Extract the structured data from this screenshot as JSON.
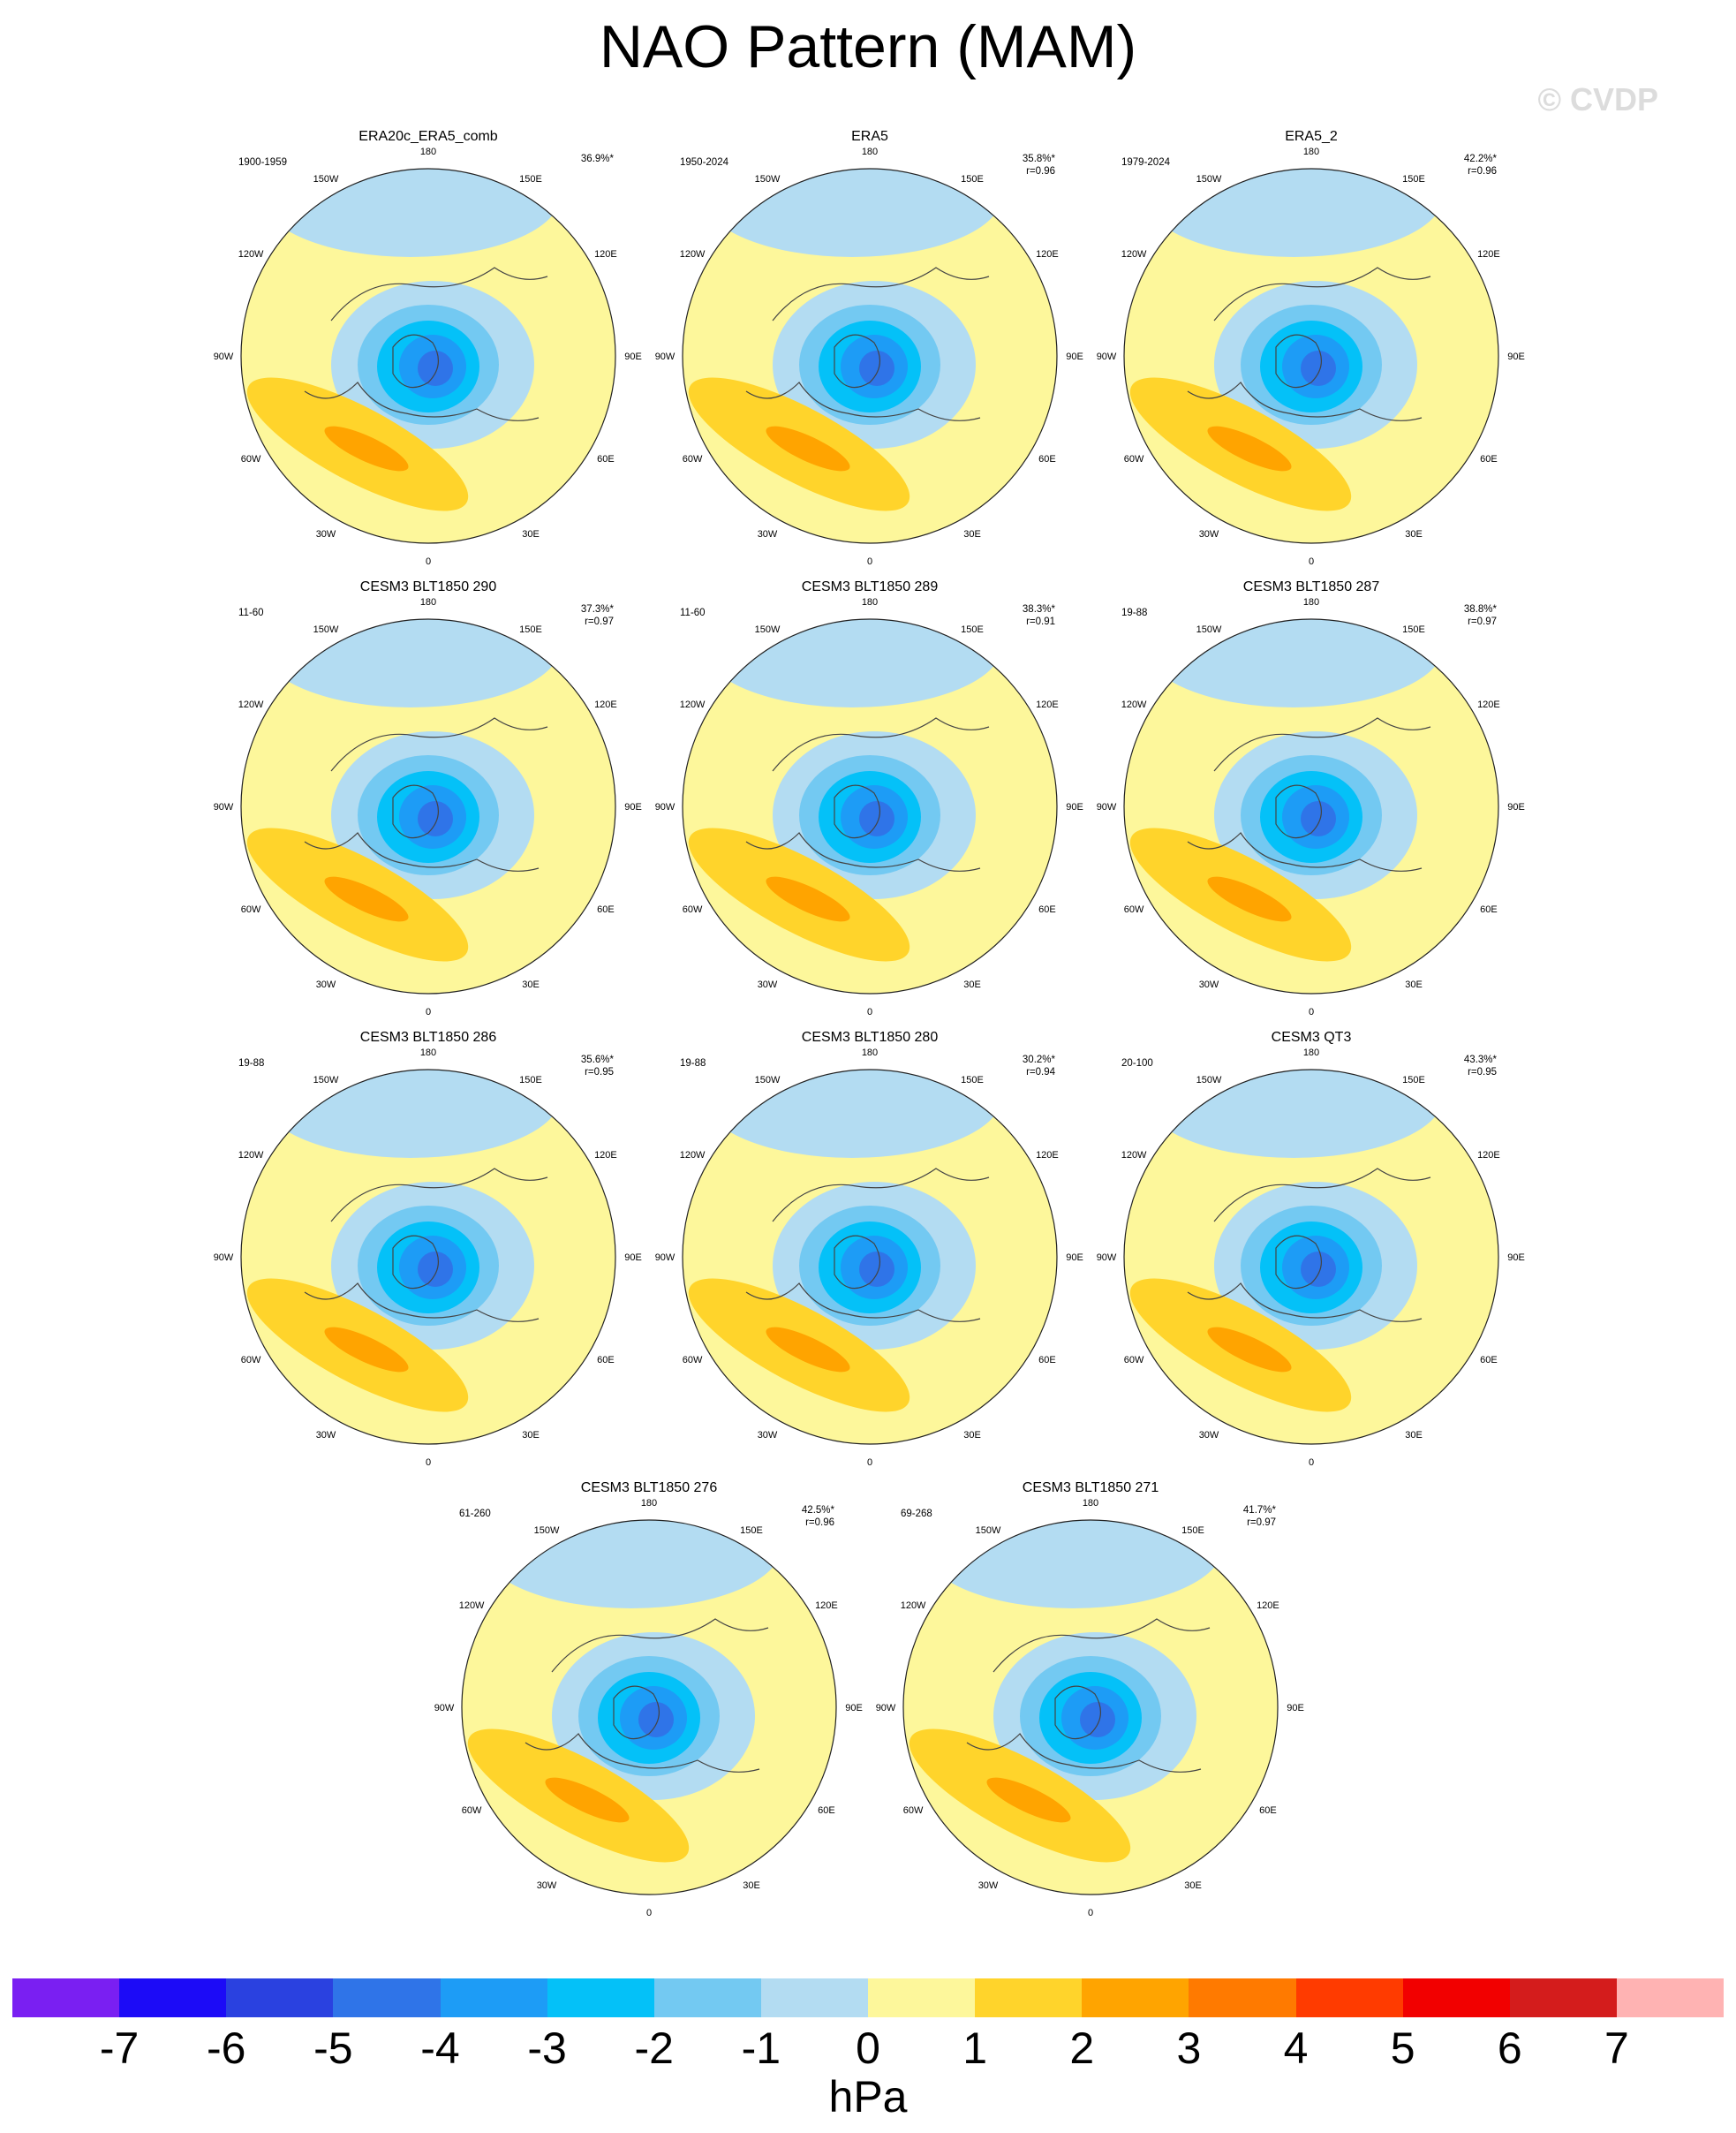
{
  "title": "NAO Pattern (MAM)",
  "watermark": "© CVDP",
  "chart_data": {
    "type": "heatmap",
    "title": "NAO Pattern (MAM)",
    "units": "hPa",
    "colorbar": {
      "levels": [
        "-7",
        "-6",
        "-5",
        "-4",
        "-3",
        "-2",
        "-1",
        "0",
        "1",
        "2",
        "3",
        "4",
        "5",
        "6",
        "7"
      ],
      "colors": [
        "#7a1ff2",
        "#1c0bf7",
        "#2a41e0",
        "#2f74e8",
        "#1d9cf6",
        "#04c1f8",
        "#73c9f2",
        "#b3dcf2",
        "#fdf79b",
        "#ffd42b",
        "#ffa400",
        "#ff7a00",
        "#ff3b00",
        "#f20000",
        "#d41c1c",
        "#ffb3b3"
      ]
    },
    "longitude_labels": [
      "180",
      "150E",
      "120E",
      "90E",
      "60E",
      "30E",
      "0",
      "30W",
      "60W",
      "90W",
      "120W",
      "150W"
    ],
    "panels": [
      {
        "title": "ERA20c_ERA5_comb",
        "years": "1900-1959",
        "pct": "36.9%*",
        "r": ""
      },
      {
        "title": "ERA5",
        "years": "1950-2024",
        "pct": "35.8%*",
        "r": "r=0.96"
      },
      {
        "title": "ERA5_2",
        "years": "1979-2024",
        "pct": "42.2%*",
        "r": "r=0.96"
      },
      {
        "title": "CESM3 BLT1850 290",
        "years": "11-60",
        "pct": "37.3%*",
        "r": "r=0.97"
      },
      {
        "title": "CESM3 BLT1850 289",
        "years": "11-60",
        "pct": "38.3%*",
        "r": "r=0.91"
      },
      {
        "title": "CESM3 BLT1850 287",
        "years": "19-88",
        "pct": "38.8%*",
        "r": "r=0.97"
      },
      {
        "title": "CESM3 BLT1850 286",
        "years": "19-88",
        "pct": "35.6%*",
        "r": "r=0.95"
      },
      {
        "title": "CESM3 BLT1850 280",
        "years": "19-88",
        "pct": "30.2%*",
        "r": "r=0.94"
      },
      {
        "title": "CESM3 QT3",
        "years": "20-100",
        "pct": "43.3%*",
        "r": "r=0.95"
      },
      {
        "title": "CESM3 BLT1850 276",
        "years": "61-260",
        "pct": "42.5%*",
        "r": "r=0.96"
      },
      {
        "title": "CESM3 BLT1850 271",
        "years": "69-268",
        "pct": "41.7%*",
        "r": "r=0.97"
      }
    ]
  }
}
